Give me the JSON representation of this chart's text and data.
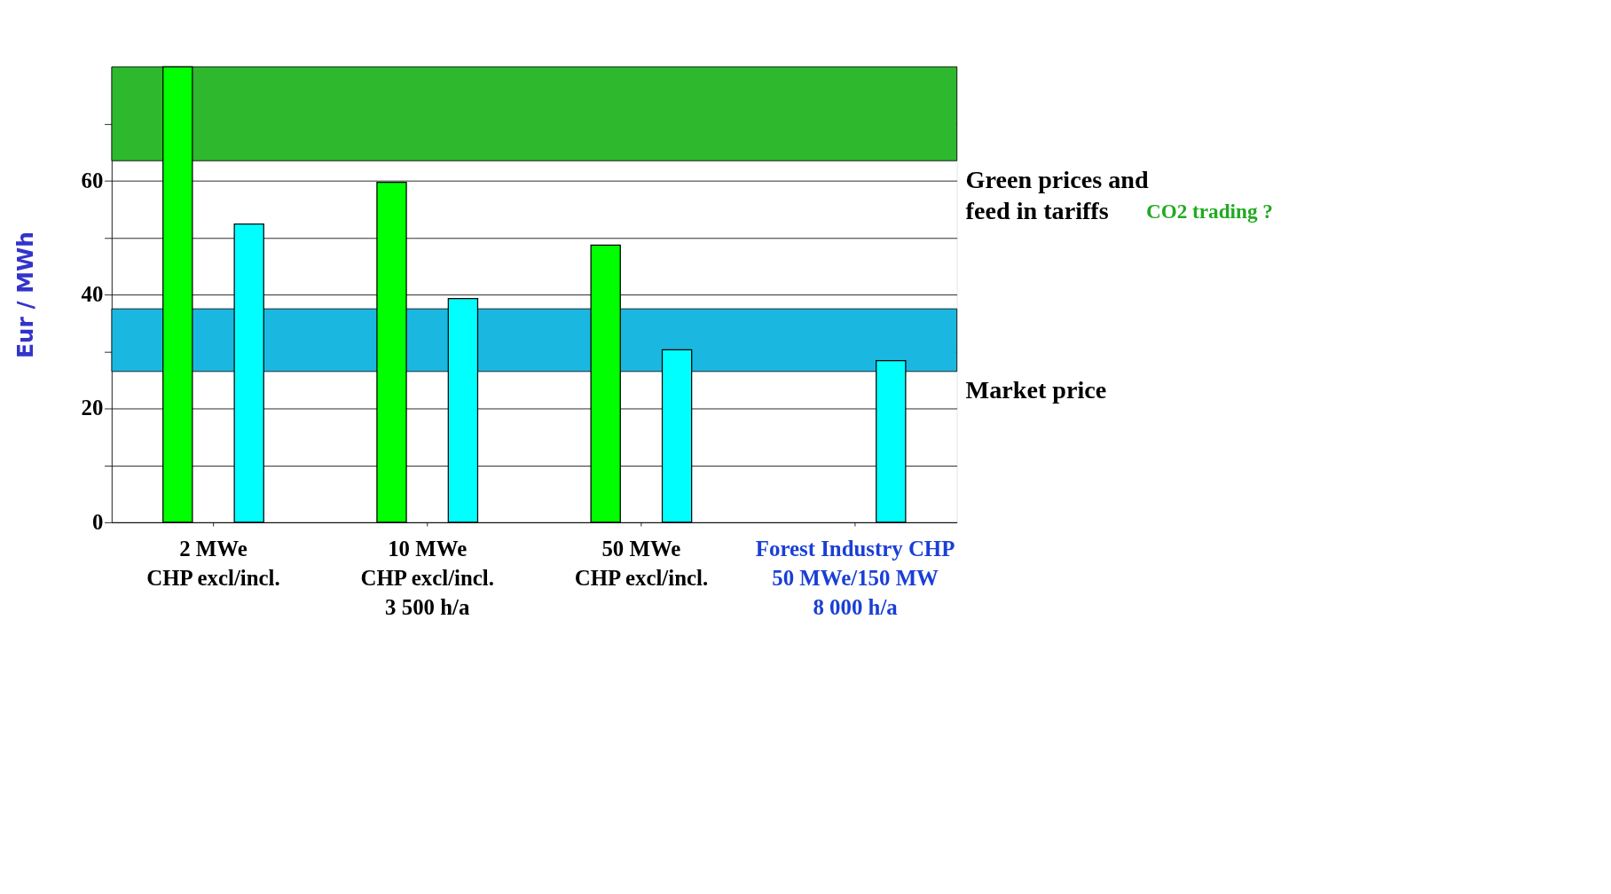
{
  "chart_data": {
    "type": "bar",
    "ylabel": "Eur / MWh",
    "categories": [
      "2 MWe\nCHP excl/incl.",
      "10 MWe\nCHP excl/incl.\n3 500 h/a",
      "50 MWe\nCHP excl/incl.",
      "Forest Industry CHP\n50 MWe/150 MW\n8 000 h/a"
    ],
    "series": [
      {
        "color": "#00ff00",
        "values": [
          80,
          59.7,
          48.7,
          null
        ]
      },
      {
        "color": "#00ffff",
        "values": [
          52.4,
          39.3,
          30.3,
          28.4
        ]
      }
    ],
    "ylim": [
      0,
      80
    ],
    "yticks": [
      0,
      {
        "value": 10,
        "label": null
      },
      20,
      {
        "value": 30,
        "label": null
      },
      40,
      {
        "value": 50,
        "label": null
      },
      60,
      {
        "value": 70,
        "label": null
      }
    ],
    "grid": "y",
    "bands": [
      {
        "axis": "y",
        "from": 63.5,
        "to": 80,
        "label": "Green prices and\nfeed in tariffs",
        "color": "#2db82d"
      },
      {
        "axis": "y",
        "from": 26.5,
        "to": 37.5,
        "label": "Market price",
        "color": "#1ab8e0"
      }
    ],
    "annotations": [
      "CO2 trading ?"
    ]
  }
}
